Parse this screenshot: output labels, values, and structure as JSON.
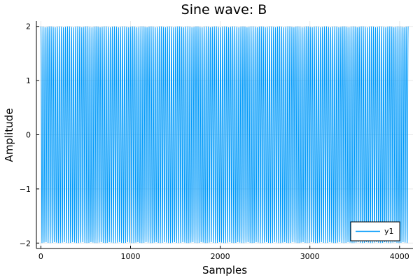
{
  "chart_data": {
    "type": "line",
    "title": "Sine wave: B",
    "xlabel": "Samples",
    "ylabel": "Amplitude",
    "xlim": [
      -50,
      4150
    ],
    "ylim": [
      -2.1,
      2.1
    ],
    "x_ticks": [
      0,
      1000,
      2000,
      3000,
      4000
    ],
    "x_tick_labels": [
      "0",
      "1000",
      "2000",
      "3000",
      "4000"
    ],
    "y_ticks": [
      -2,
      -1,
      0,
      1,
      2
    ],
    "y_tick_labels": [
      "−2",
      "−1",
      "0",
      "1",
      "2"
    ],
    "grid": true,
    "legend_position": "bottom-right",
    "series": [
      {
        "name": "y1",
        "color": "#009AFA",
        "x_start": 1,
        "x_end": 4096,
        "amplitude": 2,
        "cycles": 180
      }
    ]
  }
}
